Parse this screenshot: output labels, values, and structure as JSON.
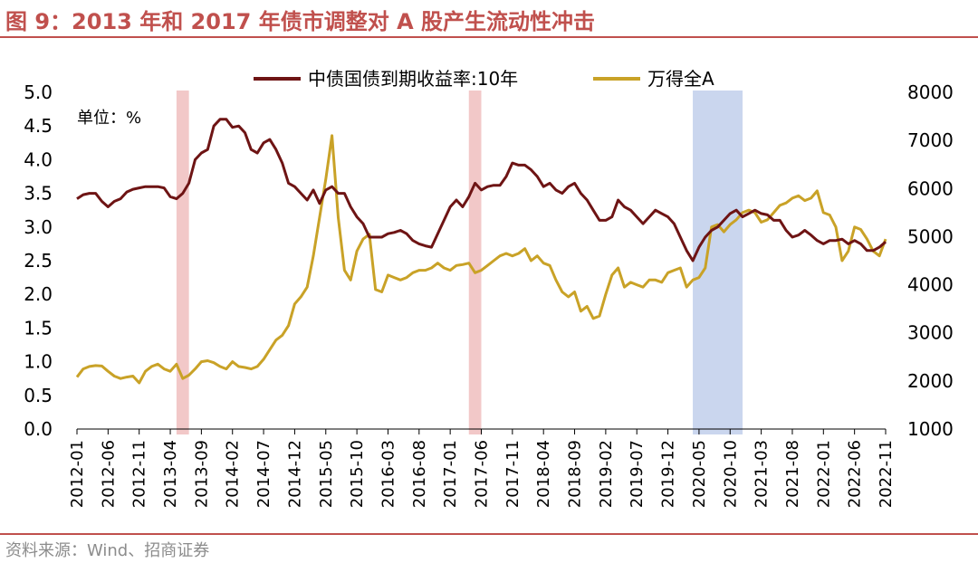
{
  "figure": {
    "title": "图 9：2013 年和 2017 年债市调整对 A 股产生流动性冲击",
    "source": "资料来源：Wind、招商证券"
  },
  "chart_data": {
    "type": "line",
    "unit_label": "单位：%",
    "colors": {
      "yield": "#6e1414",
      "index": "#c9a227",
      "pink_band": "#e89a9a",
      "blue_band": "#9fb4e0"
    },
    "axes": {
      "y_left": {
        "min": 0,
        "max": 5,
        "ticks": [
          "0.0",
          "0.5",
          "1.0",
          "1.5",
          "2.0",
          "2.5",
          "3.0",
          "3.5",
          "4.0",
          "4.5",
          "5.0"
        ]
      },
      "y_right": {
        "min": 1000,
        "max": 8000,
        "ticks": [
          "1000",
          "2000",
          "3000",
          "4000",
          "5000",
          "6000",
          "7000",
          "8000"
        ]
      },
      "x": {
        "min": "2012-01",
        "max": "2022-11",
        "ticks": [
          "2012-01",
          "2012-06",
          "2012-11",
          "2013-04",
          "2013-09",
          "2014-02",
          "2014-07",
          "2014-12",
          "2015-05",
          "2015-10",
          "2016-03",
          "2016-08",
          "2017-01",
          "2017-06",
          "2017-11",
          "2018-04",
          "2018-09",
          "2019-02",
          "2019-07",
          "2019-12",
          "2020-05",
          "2020-10",
          "2021-03",
          "2021-08",
          "2022-01",
          "2022-06",
          "2022-11"
        ]
      }
    },
    "shaded_periods": [
      {
        "start": "2013-05",
        "end": "2013-07",
        "color": "pink"
      },
      {
        "start": "2017-04",
        "end": "2017-06",
        "color": "pink"
      },
      {
        "start": "2020-04",
        "end": "2020-12",
        "color": "blue"
      }
    ],
    "series": [
      {
        "name": "中债国债到期收益率:10年",
        "axis": "left",
        "points": [
          [
            "2012-01",
            3.42
          ],
          [
            "2012-02",
            3.48
          ],
          [
            "2012-03",
            3.5
          ],
          [
            "2012-04",
            3.5
          ],
          [
            "2012-05",
            3.38
          ],
          [
            "2012-06",
            3.3
          ],
          [
            "2012-07",
            3.38
          ],
          [
            "2012-08",
            3.42
          ],
          [
            "2012-09",
            3.52
          ],
          [
            "2012-10",
            3.56
          ],
          [
            "2012-11",
            3.58
          ],
          [
            "2012-12",
            3.6
          ],
          [
            "2013-01",
            3.6
          ],
          [
            "2013-02",
            3.6
          ],
          [
            "2013-03",
            3.58
          ],
          [
            "2013-04",
            3.45
          ],
          [
            "2013-05",
            3.42
          ],
          [
            "2013-06",
            3.5
          ],
          [
            "2013-07",
            3.65
          ],
          [
            "2013-08",
            4.0
          ],
          [
            "2013-09",
            4.1
          ],
          [
            "2013-10",
            4.15
          ],
          [
            "2013-11",
            4.5
          ],
          [
            "2013-12",
            4.6
          ],
          [
            "2014-01",
            4.6
          ],
          [
            "2014-02",
            4.48
          ],
          [
            "2014-03",
            4.5
          ],
          [
            "2014-04",
            4.4
          ],
          [
            "2014-05",
            4.15
          ],
          [
            "2014-06",
            4.1
          ],
          [
            "2014-07",
            4.25
          ],
          [
            "2014-08",
            4.3
          ],
          [
            "2014-09",
            4.15
          ],
          [
            "2014-10",
            3.95
          ],
          [
            "2014-11",
            3.65
          ],
          [
            "2014-12",
            3.6
          ],
          [
            "2015-01",
            3.5
          ],
          [
            "2015-02",
            3.4
          ],
          [
            "2015-03",
            3.55
          ],
          [
            "2015-04",
            3.35
          ],
          [
            "2015-05",
            3.55
          ],
          [
            "2015-06",
            3.6
          ],
          [
            "2015-07",
            3.5
          ],
          [
            "2015-08",
            3.5
          ],
          [
            "2015-09",
            3.3
          ],
          [
            "2015-10",
            3.15
          ],
          [
            "2015-11",
            3.05
          ],
          [
            "2015-12",
            2.85
          ],
          [
            "2016-01",
            2.85
          ],
          [
            "2016-02",
            2.85
          ],
          [
            "2016-03",
            2.9
          ],
          [
            "2016-04",
            2.92
          ],
          [
            "2016-05",
            2.95
          ],
          [
            "2016-06",
            2.9
          ],
          [
            "2016-07",
            2.8
          ],
          [
            "2016-08",
            2.75
          ],
          [
            "2016-09",
            2.72
          ],
          [
            "2016-10",
            2.7
          ],
          [
            "2016-11",
            2.9
          ],
          [
            "2016-12",
            3.1
          ],
          [
            "2017-01",
            3.3
          ],
          [
            "2017-02",
            3.4
          ],
          [
            "2017-03",
            3.3
          ],
          [
            "2017-04",
            3.45
          ],
          [
            "2017-05",
            3.65
          ],
          [
            "2017-06",
            3.55
          ],
          [
            "2017-07",
            3.6
          ],
          [
            "2017-08",
            3.62
          ],
          [
            "2017-09",
            3.62
          ],
          [
            "2017-10",
            3.75
          ],
          [
            "2017-11",
            3.95
          ],
          [
            "2017-12",
            3.92
          ],
          [
            "2018-01",
            3.92
          ],
          [
            "2018-02",
            3.85
          ],
          [
            "2018-03",
            3.75
          ],
          [
            "2018-04",
            3.6
          ],
          [
            "2018-05",
            3.65
          ],
          [
            "2018-06",
            3.55
          ],
          [
            "2018-07",
            3.5
          ],
          [
            "2018-08",
            3.6
          ],
          [
            "2018-09",
            3.65
          ],
          [
            "2018-10",
            3.5
          ],
          [
            "2018-11",
            3.4
          ],
          [
            "2018-12",
            3.25
          ],
          [
            "2019-01",
            3.1
          ],
          [
            "2019-02",
            3.1
          ],
          [
            "2019-03",
            3.15
          ],
          [
            "2019-04",
            3.4
          ],
          [
            "2019-05",
            3.3
          ],
          [
            "2019-06",
            3.25
          ],
          [
            "2019-07",
            3.15
          ],
          [
            "2019-08",
            3.05
          ],
          [
            "2019-09",
            3.15
          ],
          [
            "2019-10",
            3.25
          ],
          [
            "2019-11",
            3.2
          ],
          [
            "2019-12",
            3.15
          ],
          [
            "2020-01",
            3.05
          ],
          [
            "2020-02",
            2.85
          ],
          [
            "2020-03",
            2.65
          ],
          [
            "2020-04",
            2.5
          ],
          [
            "2020-05",
            2.7
          ],
          [
            "2020-06",
            2.85
          ],
          [
            "2020-07",
            2.95
          ],
          [
            "2020-08",
            3.0
          ],
          [
            "2020-09",
            3.1
          ],
          [
            "2020-10",
            3.2
          ],
          [
            "2020-11",
            3.25
          ],
          [
            "2020-12",
            3.15
          ],
          [
            "2021-01",
            3.2
          ],
          [
            "2021-02",
            3.25
          ],
          [
            "2021-03",
            3.2
          ],
          [
            "2021-04",
            3.18
          ],
          [
            "2021-05",
            3.1
          ],
          [
            "2021-06",
            3.1
          ],
          [
            "2021-07",
            2.95
          ],
          [
            "2021-08",
            2.85
          ],
          [
            "2021-09",
            2.88
          ],
          [
            "2021-10",
            2.95
          ],
          [
            "2021-11",
            2.88
          ],
          [
            "2021-12",
            2.8
          ],
          [
            "2022-01",
            2.75
          ],
          [
            "2022-02",
            2.8
          ],
          [
            "2022-03",
            2.8
          ],
          [
            "2022-04",
            2.82
          ],
          [
            "2022-05",
            2.75
          ],
          [
            "2022-06",
            2.8
          ],
          [
            "2022-07",
            2.75
          ],
          [
            "2022-08",
            2.65
          ],
          [
            "2022-09",
            2.65
          ],
          [
            "2022-10",
            2.7
          ],
          [
            "2022-11",
            2.78
          ]
        ]
      },
      {
        "name": "万得全A",
        "axis": "right",
        "points": [
          [
            "2012-01",
            2080
          ],
          [
            "2012-02",
            2250
          ],
          [
            "2012-03",
            2300
          ],
          [
            "2012-04",
            2320
          ],
          [
            "2012-05",
            2310
          ],
          [
            "2012-06",
            2200
          ],
          [
            "2012-07",
            2100
          ],
          [
            "2012-08",
            2050
          ],
          [
            "2012-09",
            2080
          ],
          [
            "2012-10",
            2100
          ],
          [
            "2012-11",
            1960
          ],
          [
            "2012-12",
            2200
          ],
          [
            "2013-01",
            2300
          ],
          [
            "2013-02",
            2350
          ],
          [
            "2013-03",
            2250
          ],
          [
            "2013-04",
            2200
          ],
          [
            "2013-05",
            2350
          ],
          [
            "2013-06",
            2050
          ],
          [
            "2013-07",
            2120
          ],
          [
            "2013-08",
            2250
          ],
          [
            "2013-09",
            2400
          ],
          [
            "2013-10",
            2420
          ],
          [
            "2013-11",
            2380
          ],
          [
            "2013-12",
            2300
          ],
          [
            "2014-01",
            2250
          ],
          [
            "2014-02",
            2400
          ],
          [
            "2014-03",
            2300
          ],
          [
            "2014-04",
            2280
          ],
          [
            "2014-05",
            2250
          ],
          [
            "2014-06",
            2300
          ],
          [
            "2014-07",
            2450
          ],
          [
            "2014-08",
            2650
          ],
          [
            "2014-09",
            2850
          ],
          [
            "2014-10",
            2950
          ],
          [
            "2014-11",
            3150
          ],
          [
            "2014-12",
            3600
          ],
          [
            "2015-01",
            3750
          ],
          [
            "2015-02",
            3950
          ],
          [
            "2015-03",
            4600
          ],
          [
            "2015-04",
            5400
          ],
          [
            "2015-05",
            6200
          ],
          [
            "2015-06",
            7100
          ],
          [
            "2015-07",
            5400
          ],
          [
            "2015-08",
            4300
          ],
          [
            "2015-09",
            4100
          ],
          [
            "2015-10",
            4700
          ],
          [
            "2015-11",
            4950
          ],
          [
            "2015-12",
            5050
          ],
          [
            "2016-01",
            3900
          ],
          [
            "2016-02",
            3850
          ],
          [
            "2016-03",
            4200
          ],
          [
            "2016-04",
            4150
          ],
          [
            "2016-05",
            4100
          ],
          [
            "2016-06",
            4150
          ],
          [
            "2016-07",
            4250
          ],
          [
            "2016-08",
            4300
          ],
          [
            "2016-09",
            4300
          ],
          [
            "2016-10",
            4350
          ],
          [
            "2016-11",
            4450
          ],
          [
            "2016-12",
            4350
          ],
          [
            "2017-01",
            4300
          ],
          [
            "2017-02",
            4400
          ],
          [
            "2017-03",
            4420
          ],
          [
            "2017-04",
            4450
          ],
          [
            "2017-05",
            4250
          ],
          [
            "2017-06",
            4300
          ],
          [
            "2017-07",
            4400
          ],
          [
            "2017-08",
            4500
          ],
          [
            "2017-09",
            4600
          ],
          [
            "2017-10",
            4650
          ],
          [
            "2017-11",
            4600
          ],
          [
            "2017-12",
            4650
          ],
          [
            "2018-01",
            4750
          ],
          [
            "2018-02",
            4500
          ],
          [
            "2018-03",
            4600
          ],
          [
            "2018-04",
            4450
          ],
          [
            "2018-05",
            4400
          ],
          [
            "2018-06",
            4100
          ],
          [
            "2018-07",
            3850
          ],
          [
            "2018-08",
            3750
          ],
          [
            "2018-09",
            3850
          ],
          [
            "2018-10",
            3450
          ],
          [
            "2018-11",
            3550
          ],
          [
            "2018-12",
            3300
          ],
          [
            "2019-01",
            3350
          ],
          [
            "2019-02",
            3800
          ],
          [
            "2019-03",
            4200
          ],
          [
            "2019-04",
            4350
          ],
          [
            "2019-05",
            3950
          ],
          [
            "2019-06",
            4050
          ],
          [
            "2019-07",
            4000
          ],
          [
            "2019-08",
            3950
          ],
          [
            "2019-09",
            4100
          ],
          [
            "2019-10",
            4100
          ],
          [
            "2019-11",
            4050
          ],
          [
            "2019-12",
            4250
          ],
          [
            "2020-01",
            4300
          ],
          [
            "2020-02",
            4350
          ],
          [
            "2020-03",
            3950
          ],
          [
            "2020-04",
            4100
          ],
          [
            "2020-05",
            4150
          ],
          [
            "2020-06",
            4350
          ],
          [
            "2020-07",
            5200
          ],
          [
            "2020-08",
            5250
          ],
          [
            "2020-09",
            5100
          ],
          [
            "2020-10",
            5250
          ],
          [
            "2020-11",
            5350
          ],
          [
            "2020-12",
            5500
          ],
          [
            "2021-01",
            5550
          ],
          [
            "2021-02",
            5500
          ],
          [
            "2021-03",
            5300
          ],
          [
            "2021-04",
            5350
          ],
          [
            "2021-05",
            5500
          ],
          [
            "2021-06",
            5650
          ],
          [
            "2021-07",
            5700
          ],
          [
            "2021-08",
            5800
          ],
          [
            "2021-09",
            5850
          ],
          [
            "2021-10",
            5750
          ],
          [
            "2021-11",
            5800
          ],
          [
            "2021-12",
            5950
          ],
          [
            "2022-01",
            5500
          ],
          [
            "2022-02",
            5450
          ],
          [
            "2022-03",
            5200
          ],
          [
            "2022-04",
            4500
          ],
          [
            "2022-05",
            4700
          ],
          [
            "2022-06",
            5200
          ],
          [
            "2022-07",
            5150
          ],
          [
            "2022-08",
            4950
          ],
          [
            "2022-09",
            4700
          ],
          [
            "2022-10",
            4600
          ],
          [
            "2022-11",
            4950
          ]
        ]
      }
    ]
  }
}
